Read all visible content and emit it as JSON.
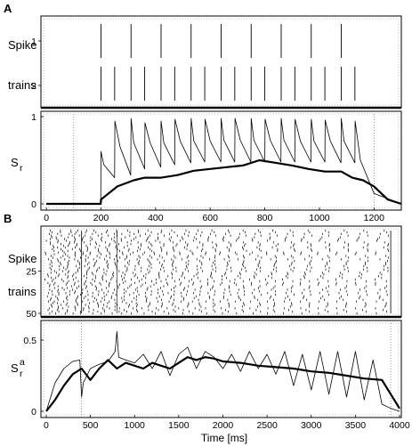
{
  "chart_data": [
    {
      "panel": "A",
      "type": "raster",
      "ylabel_line1": "Spike",
      "ylabel_line2": "trains",
      "yticks": [
        "1",
        "2"
      ],
      "x_range": [
        -20,
        1300
      ],
      "trains": [
        {
          "name": "1",
          "spike_times": [
            200,
            310,
            420,
            530,
            640,
            750,
            860,
            970,
            1080
          ]
        },
        {
          "name": "2",
          "spike_times": [
            200,
            250,
            310,
            360,
            420,
            470,
            530,
            580,
            640,
            690,
            750,
            800,
            860,
            910,
            970,
            1020,
            1080,
            1130
          ]
        }
      ],
      "stim_window": [
        100,
        1200
      ]
    },
    {
      "panel": "A",
      "type": "line",
      "ylabel": "S",
      "ylabel_sub": "r",
      "ylim": [
        0,
        1
      ],
      "yticks": [
        "0",
        "1"
      ],
      "xlim": [
        -20,
        1300
      ],
      "xticks": [
        0,
        200,
        400,
        600,
        800,
        1000,
        1200
      ],
      "series": [
        {
          "style": "thin",
          "x": [
            0,
            199,
            200,
            210,
            250,
            251,
            270,
            309,
            310,
            320,
            360,
            361,
            380,
            419,
            420,
            430,
            470,
            471,
            490,
            529,
            530,
            540,
            580,
            581,
            600,
            639,
            640,
            650,
            690,
            691,
            710,
            749,
            750,
            760,
            800,
            801,
            820,
            859,
            860,
            870,
            910,
            911,
            930,
            969,
            970,
            980,
            1020,
            1021,
            1040,
            1079,
            1080,
            1090,
            1130,
            1131,
            1150,
            1200,
            1300
          ],
          "y": [
            0,
            0,
            0.6,
            0.45,
            0.3,
            0.95,
            0.65,
            0.33,
            0.98,
            0.7,
            0.4,
            0.93,
            0.7,
            0.42,
            0.95,
            0.7,
            0.45,
            0.97,
            0.72,
            0.47,
            0.98,
            0.72,
            0.48,
            0.97,
            0.72,
            0.48,
            0.98,
            0.73,
            0.48,
            0.98,
            0.73,
            0.48,
            0.98,
            0.73,
            0.48,
            0.97,
            0.73,
            0.48,
            0.98,
            0.73,
            0.48,
            0.97,
            0.72,
            0.48,
            0.97,
            0.72,
            0.48,
            0.96,
            0.72,
            0.47,
            0.98,
            0.72,
            0.47,
            0.95,
            0.5,
            0.12,
            0.0
          ]
        },
        {
          "style": "thick",
          "x": [
            0,
            199,
            200,
            260,
            320,
            360,
            420,
            480,
            540,
            600,
            660,
            720,
            780,
            840,
            900,
            960,
            1020,
            1080,
            1120,
            1160,
            1200,
            1250,
            1300
          ],
          "y": [
            0,
            0,
            0.05,
            0.2,
            0.27,
            0.3,
            0.3,
            0.33,
            0.38,
            0.4,
            0.42,
            0.44,
            0.5,
            0.47,
            0.44,
            0.4,
            0.37,
            0.37,
            0.3,
            0.27,
            0.2,
            0.05,
            0.0
          ]
        }
      ],
      "stim_window": [
        100,
        1200
      ]
    },
    {
      "panel": "B",
      "type": "raster",
      "ylabel_line1": "Spike",
      "ylabel_line2": "trains",
      "yticks": [
        "25",
        "50"
      ],
      "x_range": [
        -60,
        4020
      ],
      "n_trains": 50,
      "stim_window": [
        400,
        3900
      ]
    },
    {
      "panel": "B",
      "type": "line",
      "ylabel": "S",
      "ylabel_sup": "a",
      "ylabel_sub": "r",
      "ylim": [
        0,
        0.6
      ],
      "yticks": [
        "0",
        "0.5"
      ],
      "xlim": [
        -60,
        4020
      ],
      "xticks": [
        0,
        500,
        1000,
        1500,
        2000,
        2500,
        3000,
        3500,
        4000
      ],
      "xlabel": "Time  [ms]",
      "series": [
        {
          "style": "thin",
          "x": [
            0,
            100,
            200,
            300,
            380,
            400,
            420,
            500,
            600,
            700,
            780,
            800,
            820,
            900,
            1000,
            1100,
            1200,
            1300,
            1400,
            1500,
            1600,
            1700,
            1800,
            1900,
            2000,
            2100,
            2200,
            2300,
            2400,
            2500,
            2600,
            2700,
            2800,
            2900,
            3000,
            3100,
            3200,
            3300,
            3400,
            3500,
            3600,
            3700,
            3800,
            3900,
            4000
          ],
          "y": [
            0.0,
            0.2,
            0.3,
            0.35,
            0.36,
            0.1,
            0.2,
            0.3,
            0.33,
            0.35,
            0.42,
            0.56,
            0.38,
            0.36,
            0.34,
            0.4,
            0.3,
            0.42,
            0.25,
            0.4,
            0.45,
            0.3,
            0.42,
            0.38,
            0.3,
            0.4,
            0.28,
            0.42,
            0.3,
            0.4,
            0.26,
            0.42,
            0.18,
            0.4,
            0.15,
            0.42,
            0.12,
            0.42,
            0.1,
            0.42,
            0.08,
            0.36,
            0.05,
            0.02,
            0.0
          ]
        },
        {
          "style": "thick",
          "x": [
            0,
            100,
            200,
            300,
            400,
            500,
            600,
            700,
            800,
            900,
            1000,
            1100,
            1200,
            1300,
            1400,
            1500,
            1600,
            1700,
            1800,
            1900,
            2000,
            2200,
            2400,
            2600,
            2800,
            3000,
            3200,
            3400,
            3600,
            3800,
            3900,
            4000
          ],
          "y": [
            0.0,
            0.08,
            0.18,
            0.26,
            0.3,
            0.22,
            0.3,
            0.36,
            0.3,
            0.34,
            0.32,
            0.3,
            0.34,
            0.32,
            0.3,
            0.34,
            0.38,
            0.36,
            0.38,
            0.37,
            0.35,
            0.34,
            0.32,
            0.31,
            0.3,
            0.28,
            0.27,
            0.25,
            0.23,
            0.22,
            0.12,
            0.02
          ]
        }
      ],
      "stim_window": [
        400,
        3900
      ]
    }
  ],
  "panels": {
    "a_label": "A",
    "b_label": "B"
  }
}
